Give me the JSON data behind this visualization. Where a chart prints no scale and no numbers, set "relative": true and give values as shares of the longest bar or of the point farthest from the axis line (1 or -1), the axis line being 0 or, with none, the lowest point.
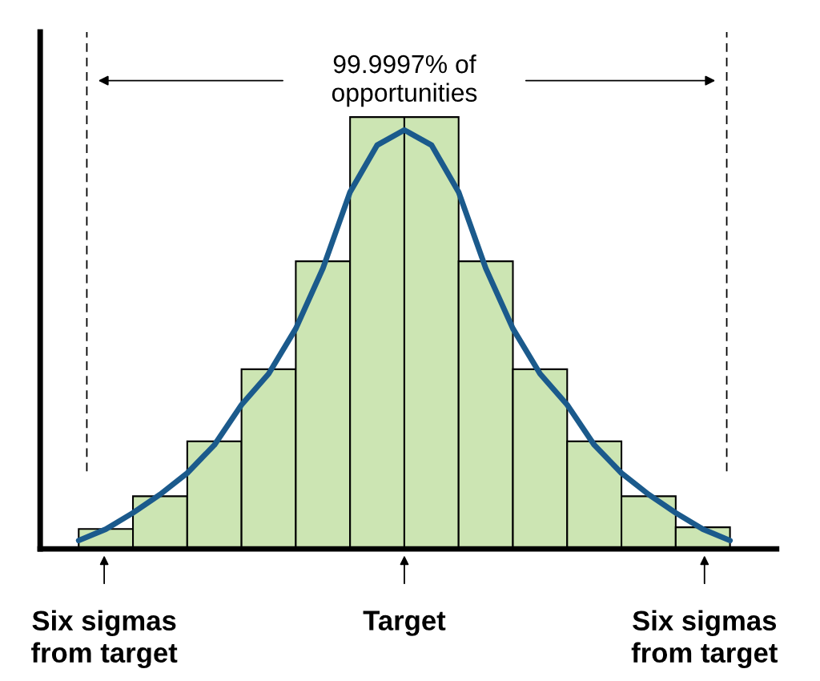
{
  "chart_data": [
    {
      "type": "bar",
      "relative": true,
      "categories": [
        null,
        null,
        null,
        null,
        null,
        null,
        null,
        null,
        null,
        null,
        null,
        null
      ],
      "values": [
        0.046,
        0.122,
        0.249,
        0.416,
        0.666,
        1,
        1,
        0.666,
        0.416,
        0.249,
        0.122,
        0.05
      ],
      "color": "#cce5b3",
      "annotations": [
        "99.9997% of\nopportunities",
        "Six sigmas\nfrom target",
        "Target",
        "Six sigmas\nfrom target"
      ]
    },
    {
      "type": "line",
      "relative": true,
      "categories": [
        null,
        null,
        null,
        null,
        null,
        null,
        null,
        null,
        null,
        null,
        null,
        null,
        null,
        null,
        null,
        null,
        null,
        null,
        null,
        null,
        null,
        null,
        null,
        null,
        null
      ],
      "values": [
        0.02,
        0.047,
        0.086,
        0.13,
        0.181,
        0.248,
        0.344,
        0.418,
        0.526,
        0.67,
        0.852,
        0.964,
        1,
        0.964,
        0.852,
        0.67,
        0.526,
        0.418,
        0.344,
        0.248,
        0.181,
        0.13,
        0.086,
        0.047,
        0.02
      ],
      "color": "#1b5a8c"
    }
  ]
}
